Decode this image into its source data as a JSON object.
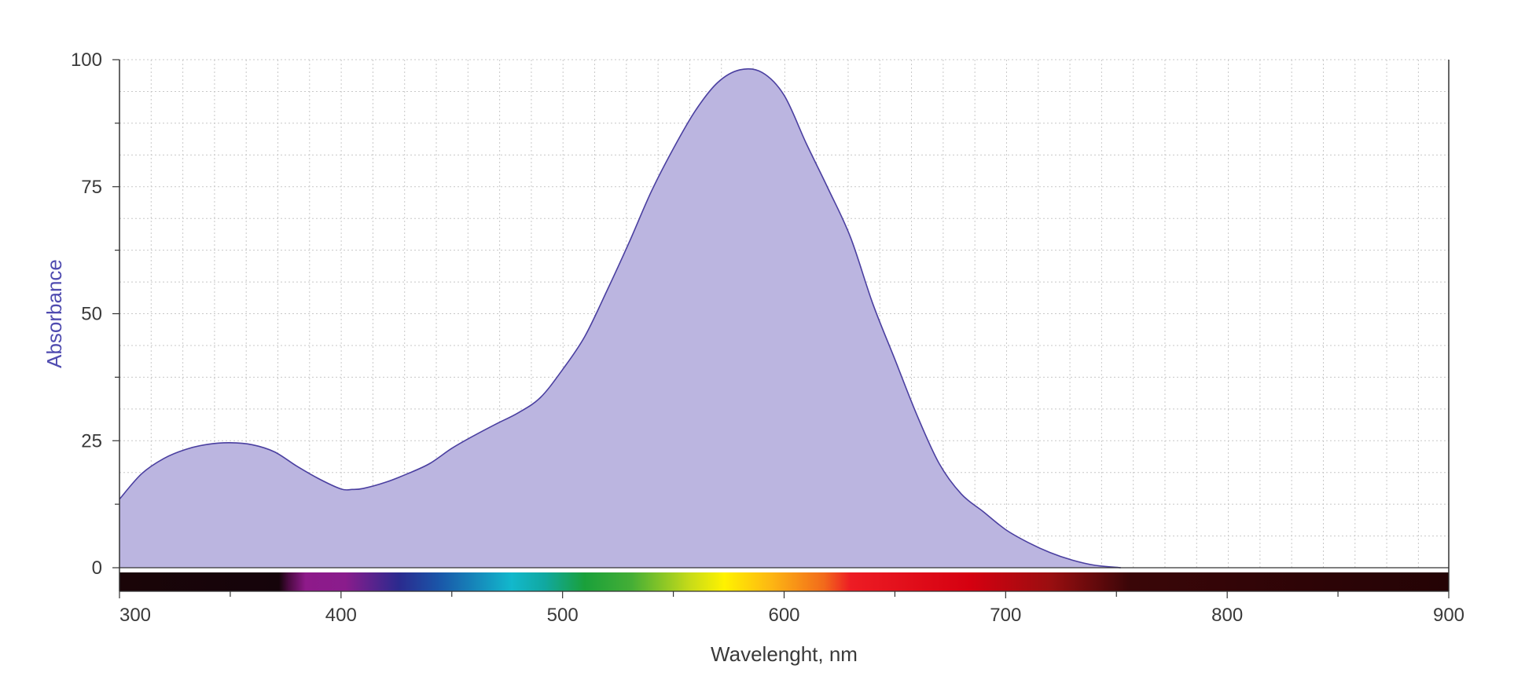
{
  "chart_data": {
    "type": "area",
    "xlabel": "Wavelenght, nm",
    "ylabel": "Absorbance",
    "xlim": [
      300,
      900
    ],
    "ylim": [
      0,
      100
    ],
    "x_ticks": [
      300,
      400,
      500,
      600,
      700,
      800,
      900
    ],
    "y_ticks": [
      0,
      25,
      50,
      75,
      100
    ],
    "x_minor_step": 50,
    "y_minor_step": 12.5,
    "grid_step_x": 14.3,
    "grid_step_y": 6.25,
    "grid": true,
    "spectrum_bar": true,
    "colors": {
      "fill": "#bbb5e0",
      "line": "#4a3fa0",
      "ylabel": "#4f4bb0",
      "grid": "#c8c8c8",
      "axis": "#333333"
    },
    "series": [
      {
        "x": [
          300,
          310,
          320,
          330,
          340,
          350,
          360,
          370,
          380,
          390,
          400,
          405,
          410,
          420,
          430,
          440,
          450,
          460,
          470,
          480,
          490,
          500,
          510,
          520,
          530,
          540,
          550,
          560,
          570,
          580,
          590,
          600,
          610,
          620,
          630,
          640,
          650,
          660,
          670,
          680,
          690,
          700,
          710,
          720,
          730,
          740,
          752
        ],
        "y": [
          13.5,
          18.5,
          21.5,
          23.3,
          24.3,
          24.6,
          24.2,
          22.8,
          20.0,
          17.5,
          15.5,
          15.4,
          15.6,
          16.8,
          18.5,
          20.5,
          23.5,
          26.0,
          28.3,
          30.5,
          33.5,
          39.0,
          45.5,
          54.5,
          64.0,
          74.0,
          82.5,
          90.0,
          95.5,
          98.0,
          97.5,
          93.0,
          83.5,
          74.5,
          65.0,
          52.0,
          41.0,
          30.0,
          20.5,
          14.5,
          11.0,
          7.5,
          5.0,
          3.0,
          1.5,
          0.5,
          0.0
        ]
      }
    ]
  }
}
